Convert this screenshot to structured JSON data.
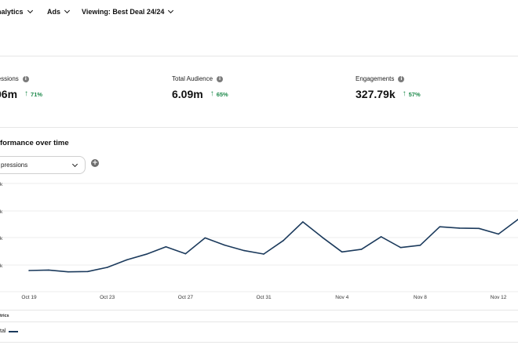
{
  "topbar": {
    "items": [
      {
        "label": "nalytics"
      },
      {
        "label": "Ads"
      },
      {
        "label": "Viewing: Best Deal 24/24"
      }
    ]
  },
  "metrics": [
    {
      "label": "ressions",
      "value": "06m",
      "delta": "71%",
      "direction": "up"
    },
    {
      "label": "Total Audience",
      "value": "6.09m",
      "delta": "65%",
      "direction": "up"
    },
    {
      "label": "Engagements",
      "value": "327.79k",
      "delta": "57%",
      "direction": "up"
    }
  ],
  "section": {
    "title": "formance over time",
    "metric_select_value": "pressions",
    "add_symbol": "+"
  },
  "chart_data": {
    "type": "line",
    "x_tick_labels": [
      "Oct 19",
      "Oct 23",
      "Oct 27",
      "Oct 31",
      "Nov 4",
      "Nov 8",
      "Nov 12"
    ],
    "y_tick_labels": [
      "k",
      "k",
      "k",
      "k"
    ],
    "grid": true,
    "series": [
      {
        "name": "tal",
        "color": "#1b3a5c",
        "values": [
          1.27,
          1.3,
          1.19,
          1.21,
          1.46,
          1.91,
          2.25,
          2.7,
          2.28,
          3.23,
          2.8,
          2.47,
          2.26,
          3.07,
          4.19,
          3.26,
          2.39,
          2.55,
          3.3,
          2.65,
          2.79,
          3.9,
          3.82,
          3.8,
          3.46,
          4.34
        ]
      }
    ],
    "ylim": [
      0,
      6.5
    ]
  },
  "legend": {
    "heading": "trics",
    "items": [
      {
        "label": "tal"
      }
    ]
  },
  "colors": {
    "line": "#1b3a5c",
    "positive": "#1f8a4c",
    "grid": "#ececec"
  }
}
